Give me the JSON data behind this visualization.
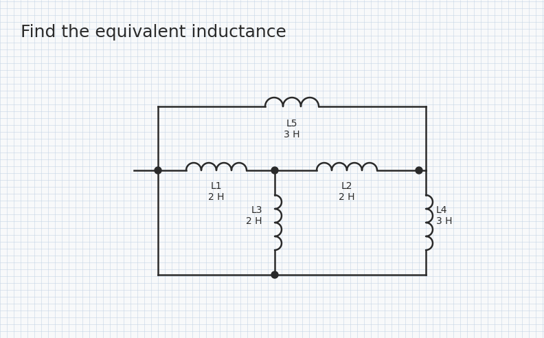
{
  "title": "Find the equivalent inductance",
  "title_fontsize": 18,
  "background_color": "#f8f9fa",
  "grid_color": "#c5d5e5",
  "line_color": "#2a2a2a",
  "text_color": "#2a2a2a",
  "fig_w": 7.92,
  "fig_h": 4.92,
  "dpi": 100,
  "inductor_labels": {
    "L1": "2 H",
    "L2": "2 H",
    "L3": "2 H",
    "L4": "3 H",
    "L5": "3 H"
  }
}
